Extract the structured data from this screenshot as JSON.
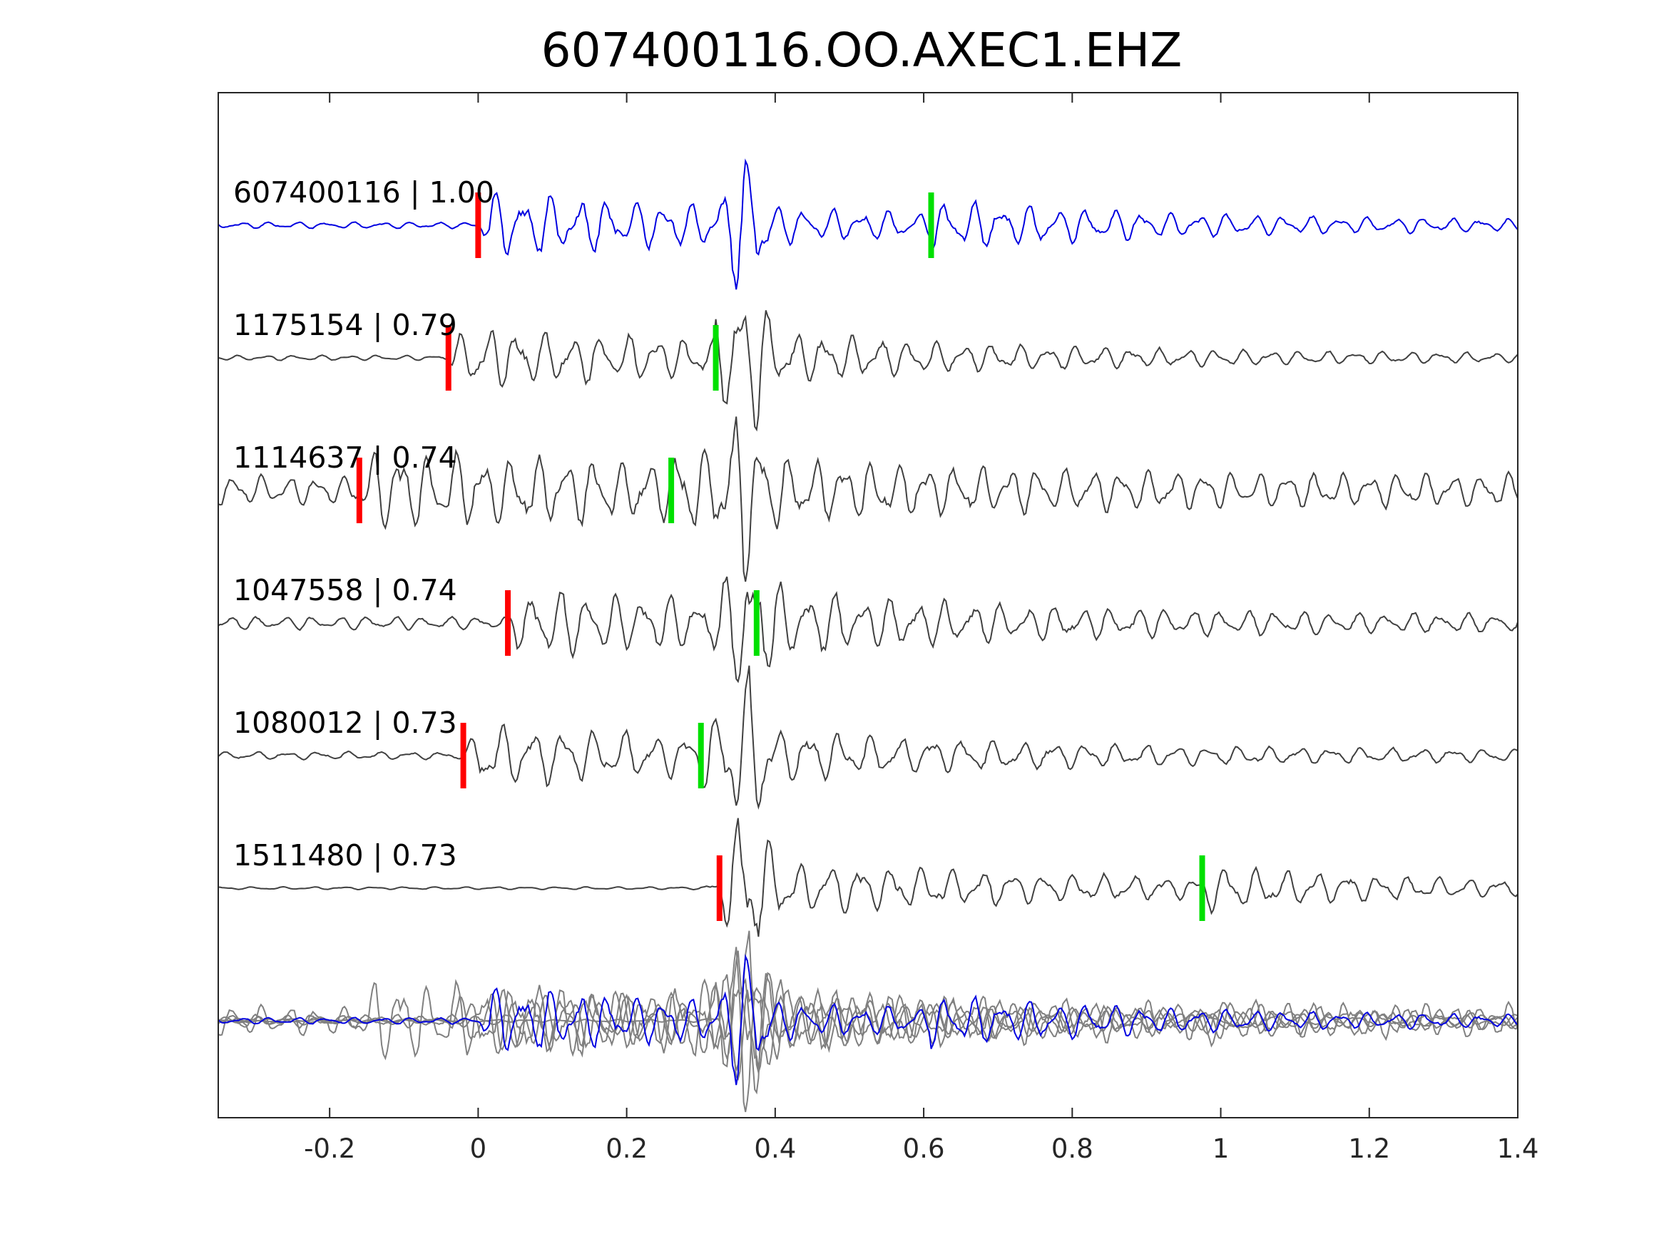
{
  "chart_data": {
    "type": "line",
    "title": "607400116.OO.AXEC1.EHZ",
    "xlabel": "",
    "ylabel": "",
    "xlim": [
      -0.35,
      1.4
    ],
    "x_ticks": [
      -0.2,
      0,
      0.2,
      0.4,
      0.6,
      0.8,
      1,
      1.2,
      1.4
    ],
    "x_tick_labels": [
      "-0.2",
      "0",
      "0.2",
      "0.4",
      "0.6",
      "0.8",
      "1",
      "1.2",
      "1.4"
    ],
    "grid": false,
    "legend": "none",
    "colors": {
      "reference_trace": "#0000e0",
      "other_traces": "#404040",
      "overlay_traces": "#808080",
      "p_pick": "#ff0000",
      "s_pick": "#00e000",
      "axes": "#262626"
    },
    "series": [
      {
        "label": "607400116 | 1.00",
        "reference": true,
        "p_pick": 0.0,
        "s_pick": 0.61
      },
      {
        "label": "1175154 | 0.79",
        "reference": false,
        "p_pick": -0.04,
        "s_pick": 0.32
      },
      {
        "label": "1114637 | 0.74",
        "reference": false,
        "p_pick": -0.16,
        "s_pick": 0.26
      },
      {
        "label": "1047558 | 0.74",
        "reference": false,
        "p_pick": 0.04,
        "s_pick": 0.375
      },
      {
        "label": "1080012 | 0.73",
        "reference": false,
        "p_pick": -0.02,
        "s_pick": 0.3
      },
      {
        "label": "1511480 | 0.73",
        "reference": false,
        "p_pick": 0.325,
        "s_pick": 0.975
      }
    ],
    "overlay": {
      "description_shown": false
    }
  }
}
